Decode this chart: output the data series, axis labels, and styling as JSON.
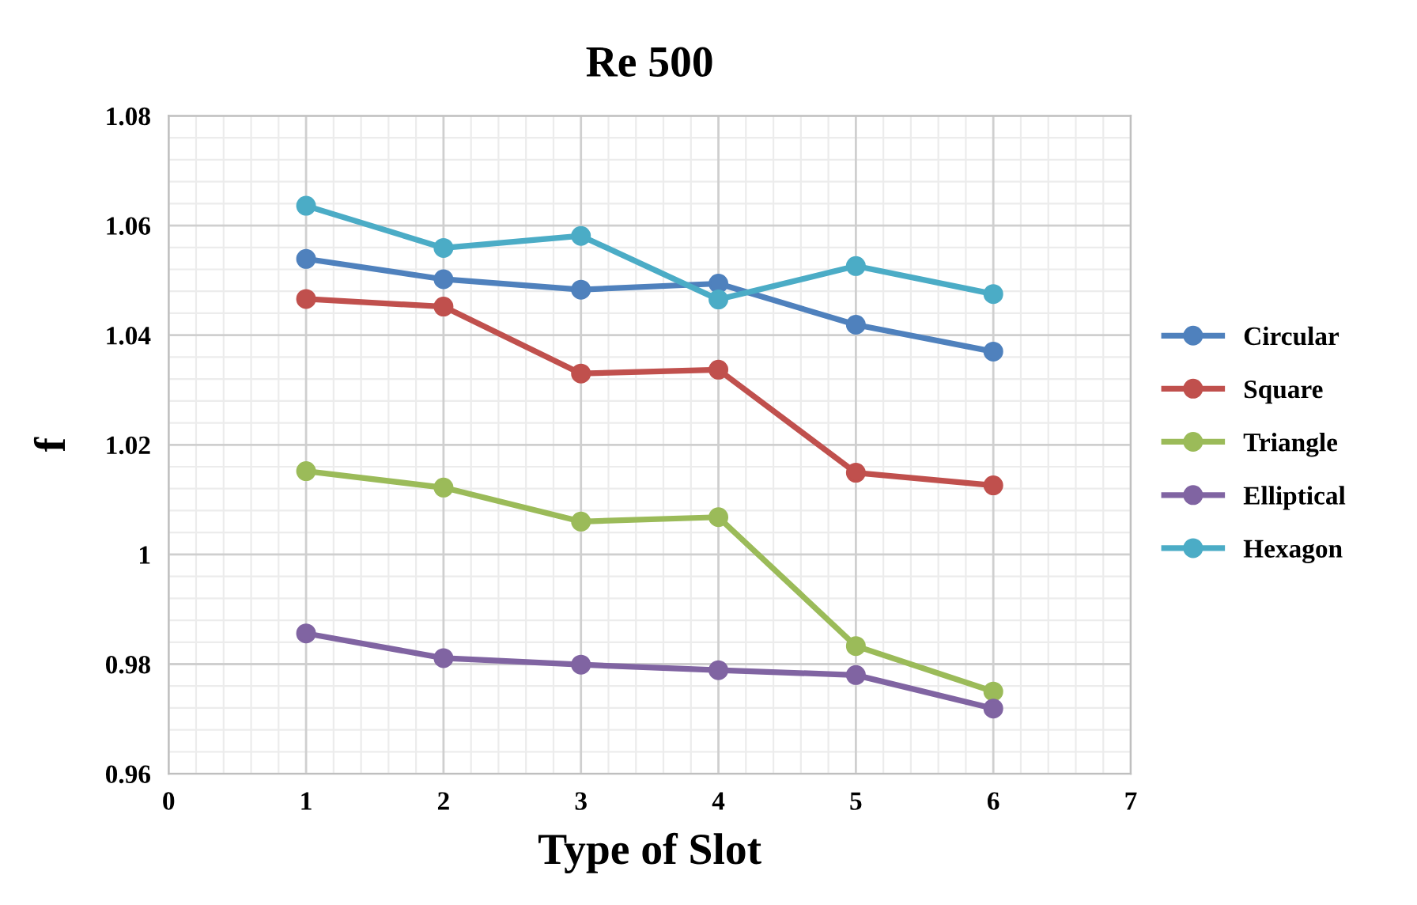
{
  "chart_data": {
    "type": "line",
    "title": "Re 500",
    "xlabel": "Type of Slot",
    "ylabel": "f",
    "x": [
      1,
      2,
      3,
      4,
      5,
      6
    ],
    "series": [
      {
        "name": "Circular",
        "color": "#4f81bd",
        "values": [
          1.0539,
          1.0502,
          1.0483,
          1.0494,
          1.0419,
          1.037
        ]
      },
      {
        "name": "Square",
        "color": "#c0504d",
        "values": [
          1.0466,
          1.0452,
          1.033,
          1.0337,
          1.0149,
          1.0126
        ]
      },
      {
        "name": "Triangle",
        "color": "#9bbb59",
        "values": [
          1.0152,
          1.0122,
          1.006,
          1.0068,
          0.9833,
          0.975
        ]
      },
      {
        "name": "Elliptical",
        "color": "#8064a2",
        "values": [
          0.9856,
          0.9811,
          0.9799,
          0.9789,
          0.978,
          0.9719
        ]
      },
      {
        "name": "Hexagon",
        "color": "#4bacc6",
        "values": [
          1.0636,
          1.0559,
          1.0581,
          1.0465,
          1.0526,
          1.0475
        ]
      }
    ],
    "xlim": [
      0,
      7
    ],
    "xticks": [
      0,
      1,
      2,
      3,
      4,
      5,
      6,
      7
    ],
    "ylim": [
      0.96,
      1.08
    ],
    "yticks": [
      {
        "value": 0.96,
        "label": "0.96"
      },
      {
        "value": 0.98,
        "label": "0.98"
      },
      {
        "value": 1,
        "label": "1"
      },
      {
        "value": 1.02,
        "label": "1.02"
      },
      {
        "value": 1.04,
        "label": "1.04"
      },
      {
        "value": 1.06,
        "label": "1.06"
      },
      {
        "value": 1.08,
        "label": "1.08"
      }
    ],
    "grid": true,
    "legend": "right",
    "marker": "circle",
    "line_style": "solid"
  }
}
